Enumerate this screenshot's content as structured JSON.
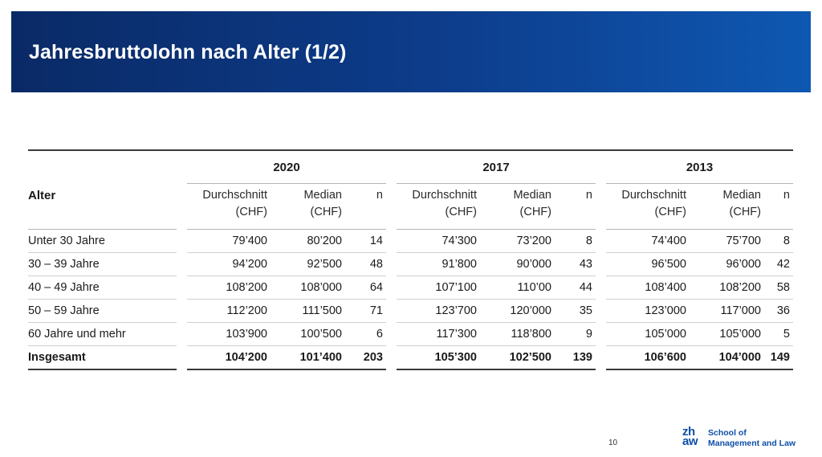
{
  "header": {
    "title": "Jahresbruttolohn nach Alter (1/2)"
  },
  "table": {
    "row_header": "Alter",
    "groups": [
      {
        "year": "2020",
        "avg_label": [
          "Durchschnitt",
          "(CHF)"
        ],
        "median_label": [
          "Median",
          "(CHF)"
        ],
        "n_label": "n"
      },
      {
        "year": "2017",
        "avg_label": [
          "Durchschnitt",
          "(CHF)"
        ],
        "median_label": [
          "Median",
          "(CHF)"
        ],
        "n_label": "n"
      },
      {
        "year": "2013",
        "avg_label": [
          "Durchschnitt",
          "(CHF)"
        ],
        "median_label": [
          "Median",
          "(CHF)"
        ],
        "n_label": "n"
      }
    ],
    "rows": [
      {
        "label": "Unter 30 Jahre",
        "values": [
          "79’400",
          "80’200",
          "14",
          "74’300",
          "73’200",
          "8",
          "74’400",
          "75’700",
          "8"
        ]
      },
      {
        "label": "30 – 39 Jahre",
        "values": [
          "94’200",
          "92’500",
          "48",
          "91’800",
          "90’000",
          "43",
          "96’500",
          "96’000",
          "42"
        ]
      },
      {
        "label": "40 – 49 Jahre",
        "values": [
          "108’200",
          "108’000",
          "64",
          "107’100",
          "110’00",
          "44",
          "108’400",
          "108’200",
          "58"
        ]
      },
      {
        "label": "50 – 59 Jahre",
        "values": [
          "112’200",
          "111’500",
          "71",
          "123’700",
          "120’000",
          "35",
          "123’000",
          "117’000",
          "36"
        ]
      },
      {
        "label": "60 Jahre und mehr",
        "values": [
          "103’900",
          "100’500",
          "6",
          "117’300",
          "118’800",
          "9",
          "105’000",
          "105’000",
          "5"
        ]
      }
    ],
    "total": {
      "label": "Insgesamt",
      "values": [
        "104’200",
        "101’400",
        "203",
        "105’300",
        "102’500",
        "139",
        "106’600",
        "104’000",
        "149"
      ]
    }
  },
  "footer": {
    "page_number": "10",
    "logo_mark_top": "zh",
    "logo_mark_bottom": "aw",
    "logo_line1": "School of",
    "logo_line2": "Management and Law",
    "brand_color": "#0e4fa8"
  }
}
